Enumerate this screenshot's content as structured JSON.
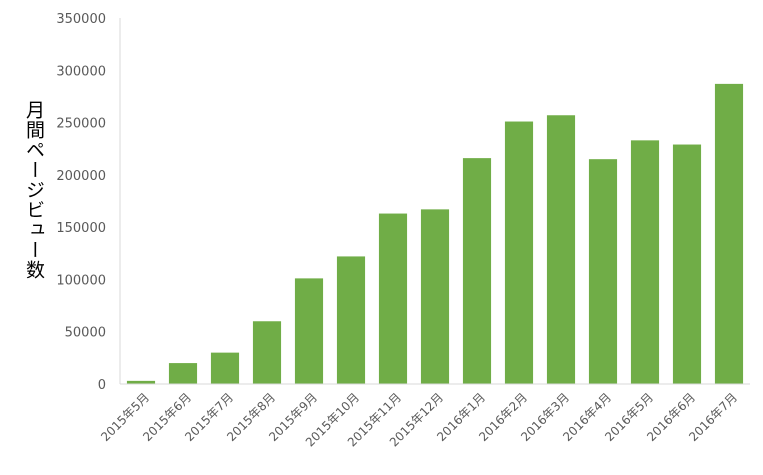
{
  "chart_data": {
    "type": "bar",
    "title": "",
    "xlabel": "",
    "ylabel": "月間ページビュー数",
    "ylim": [
      0,
      350000
    ],
    "yticks": [
      "0",
      "50000",
      "100000",
      "150000",
      "200000",
      "250000",
      "300000",
      "350000"
    ],
    "grid": false,
    "bar_color": "#70ad47",
    "categories": [
      "2015年5月",
      "2015年6月",
      "2015年7月",
      "2015年8月",
      "2015年9月",
      "2015年10月",
      "2015年11月",
      "2015年12月",
      "2016年1月",
      "2016年2月",
      "2016年3月",
      "2016年4月",
      "2016年5月",
      "2016年6月",
      "2016年7月"
    ],
    "values": [
      3000,
      20000,
      30000,
      60000,
      101000,
      122000,
      163000,
      167000,
      216000,
      251000,
      257000,
      215000,
      233000,
      229000,
      287000
    ]
  }
}
